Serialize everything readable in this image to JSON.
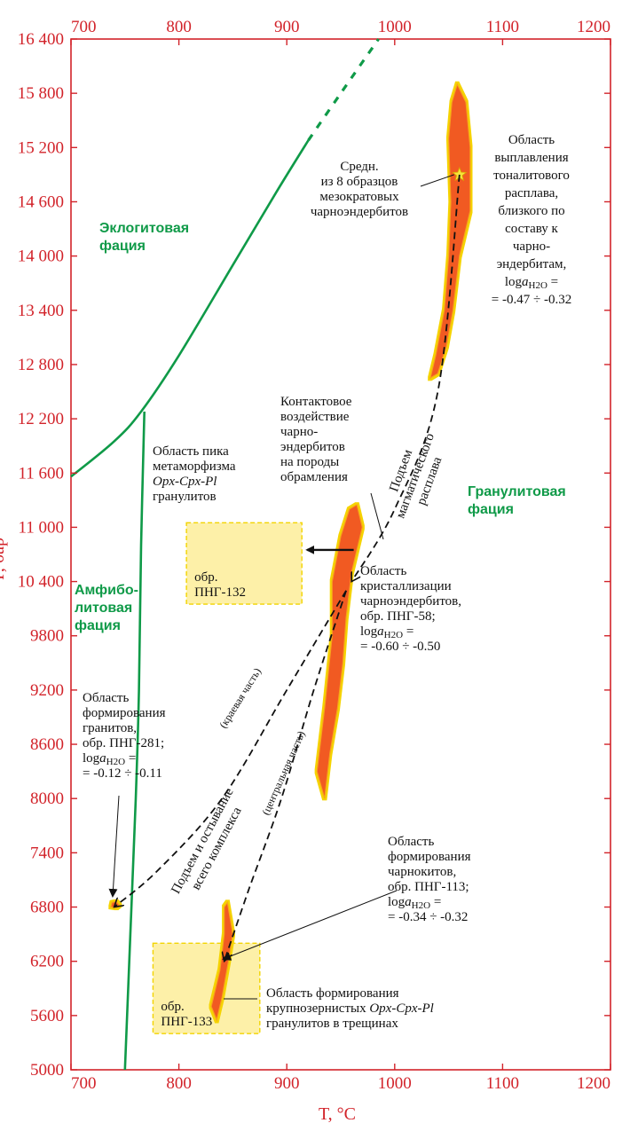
{
  "chart_data": {
    "type": "line",
    "xlim": [
      700,
      1200
    ],
    "ylim": [
      5000,
      16400
    ],
    "xlabel": "T, °C",
    "ylabel": "P, бар",
    "x_ticks": [
      "700",
      "800",
      "900",
      "1000",
      "1100",
      "1200"
    ],
    "y_ticks": [
      "5000",
      "5600",
      "6200",
      "6800",
      "7400",
      "8000",
      "8600",
      "9200",
      "9800",
      "10 400",
      "11 000",
      "11 600",
      "12 200",
      "12 800",
      "13 400",
      "14 000",
      "14 600",
      "15 200",
      "15 800",
      "16 400"
    ],
    "y_tick_values": [
      5000,
      5600,
      6200,
      6800,
      7400,
      8000,
      8600,
      9200,
      9800,
      10400,
      11000,
      11600,
      12200,
      12800,
      13400,
      14000,
      14600,
      15200,
      15800,
      16400
    ],
    "facies_boundaries": [
      {
        "id": "eclogite-upper",
        "style": "solid",
        "points": [
          [
            700,
            11560
          ],
          [
            740,
            11950
          ],
          [
            765,
            12280
          ],
          [
            800,
            12900
          ],
          [
            850,
            13900
          ],
          [
            890,
            14700
          ],
          [
            920,
            15280
          ]
        ]
      },
      {
        "id": "eclogite-upper-dashed",
        "style": "dotted",
        "points": [
          [
            920,
            15280
          ],
          [
            950,
            15800
          ],
          [
            985,
            16400
          ]
        ]
      },
      {
        "id": "amphibolite-boundary",
        "style": "solid",
        "points": [
          [
            768,
            12280
          ],
          [
            765,
            10800
          ],
          [
            763,
            9200
          ],
          [
            760,
            8000
          ],
          [
            755,
            6500
          ],
          [
            750,
            5000
          ]
        ]
      }
    ],
    "facies_labels": [
      "Эклогитовая фация",
      "Гранулитовая фация",
      "Амфибо- литовая фация"
    ],
    "regions": [
      {
        "id": "tonalite-melt",
        "points": [
          [
            1058,
            15900
          ],
          [
            1066,
            15700
          ],
          [
            1070,
            15200
          ],
          [
            1070,
            14500
          ],
          [
            1060,
            14000
          ],
          [
            1054,
            13400
          ],
          [
            1048,
            13000
          ],
          [
            1040,
            12700
          ],
          [
            1033,
            12650
          ],
          [
            1038,
            12900
          ],
          [
            1046,
            13400
          ],
          [
            1050,
            14000
          ],
          [
            1052,
            14600
          ],
          [
            1050,
            15300
          ],
          [
            1053,
            15700
          ]
        ]
      },
      {
        "id": "charnoenderbite-crystallization",
        "points": [
          [
            965,
            11250
          ],
          [
            970,
            11000
          ],
          [
            960,
            10500
          ],
          [
            955,
            10000
          ],
          [
            952,
            9500
          ],
          [
            947,
            9000
          ],
          [
            940,
            8500
          ],
          [
            935,
            8000
          ],
          [
            928,
            8300
          ],
          [
            935,
            9000
          ],
          [
            942,
            9800
          ],
          [
            942,
            10400
          ],
          [
            950,
            10900
          ],
          [
            958,
            11200
          ]
        ]
      },
      {
        "id": "charnockite-formation",
        "points": [
          [
            845,
            6850
          ],
          [
            850,
            6500
          ],
          [
            846,
            6200
          ],
          [
            840,
            5800
          ],
          [
            835,
            5550
          ],
          [
            830,
            5700
          ],
          [
            838,
            6100
          ],
          [
            842,
            6500
          ],
          [
            842,
            6800
          ]
        ]
      },
      {
        "id": "granite-formation",
        "points": [
          [
            742,
            6860
          ],
          [
            745,
            6820
          ],
          [
            742,
            6790
          ],
          [
            737,
            6800
          ],
          [
            738,
            6850
          ]
        ]
      }
    ],
    "boxes": [
      {
        "id": "png-132",
        "x": [
          807,
          914
        ],
        "y": [
          10150,
          11050
        ],
        "label": "обр. ПНГ-132"
      },
      {
        "id": "png-133",
        "x": [
          776,
          875
        ],
        "y": [
          5400,
          6400
        ],
        "label": "обр. ПНГ-133"
      }
    ],
    "average_point": {
      "x": 1060,
      "y": 14900,
      "label": "Средн. из 8 образцов мезократовых чарноэндербитов"
    },
    "paths": [
      {
        "id": "magmatic-ascent",
        "style": "dashed",
        "points": [
          [
            1060,
            14900
          ],
          [
            1040,
            12500
          ],
          [
            1000,
            11200
          ],
          [
            960,
            10400
          ]
        ]
      },
      {
        "id": "edge-part",
        "style": "dashed",
        "points": [
          [
            955,
            10300
          ],
          [
            900,
            9200
          ],
          [
            840,
            8000
          ],
          [
            780,
            7200
          ],
          [
            740,
            6800
          ]
        ]
      },
      {
        "id": "central-part",
        "style": "dashed",
        "points": [
          [
            955,
            10300
          ],
          [
            925,
            9200
          ],
          [
            895,
            8000
          ],
          [
            865,
            7000
          ],
          [
            842,
            6200
          ]
        ]
      }
    ],
    "arrows": [
      {
        "id": "contact-arrow",
        "from": [
          962,
          10750
        ],
        "to": [
          914,
          10750
        ]
      }
    ],
    "annotations": {
      "tonalite": [
        "Область",
        "выплавления",
        "тоналитового",
        "расплава,",
        "близкого по",
        "составу к",
        "чарно-",
        "эндербитам,",
        "loga_H2O =",
        "= -0.47 ÷ -0.32"
      ],
      "average": [
        "Средн.",
        "из 8 образцов",
        "мезократовых",
        "чарноэндербитов"
      ],
      "contact": [
        "Контактовое",
        "воздействие",
        "чарно-",
        "эндербитов",
        "на породы",
        "обрамления"
      ],
      "peak": [
        "Область пика",
        "метаморфизма",
        "Opx-Cpx-Pl",
        "гранулитов"
      ],
      "crystallization": [
        "Область",
        "кристаллизации",
        "чарноэндербитов,",
        "обр. ПНГ-58;",
        "loga_H2O =",
        "= -0.60 ÷ -0.50"
      ],
      "granite": [
        "Область",
        "формирования",
        "гранитов,",
        "обр. ПНГ-281;",
        "loga_H2O =",
        "= -0.12 ÷ -0.11"
      ],
      "charnockite": [
        "Область",
        "формирования",
        "чарнокитов,",
        "обр. ПНГ-113;",
        "loga_H2O =",
        "= -0.34 ÷ -0.32"
      ],
      "coarse": [
        "Область формирования",
        "крупнозернистых Opx-Cpx-Pl",
        "гранулитов в трещинах"
      ],
      "ascent_magmatic": [
        "Подъем",
        "магматического",
        "расплава"
      ],
      "ascent_whole": [
        "Подъем и остывание",
        "всего комплекса"
      ],
      "edge_part": "(краевая часть)",
      "central_part": "(центральная часть)"
    },
    "colors": {
      "axis": "#d2232a",
      "facies": "#0f9a48",
      "region_fill": "#f15a22",
      "region_glow": "#f5d300",
      "box_fill": "#fdf0a8",
      "box_stroke": "#f2d400",
      "star": "#f7e43a"
    }
  }
}
